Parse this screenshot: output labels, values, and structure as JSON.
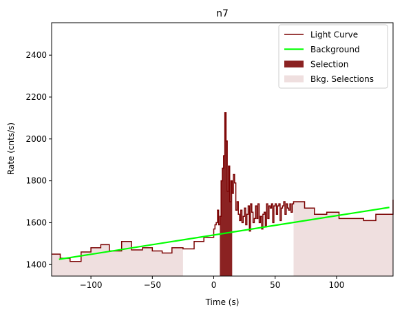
{
  "chart_data": {
    "type": "line",
    "title": "n7",
    "xlabel": "Time (s)",
    "ylabel": "Rate (cnts/s)",
    "xlim": [
      -132,
      146
    ],
    "ylim": [
      1345,
      2555
    ],
    "xticks": [
      -100,
      -50,
      0,
      50,
      100
    ],
    "yticks": [
      1400,
      1600,
      1800,
      2000,
      2200,
      2400
    ],
    "grid": false,
    "legend_placement": "top-right",
    "colors": {
      "light_curve": "#7a0000",
      "background": "#00ff00",
      "selection": "#8b2222",
      "bkg_selection": "#efdfdf"
    },
    "legend": [
      {
        "label": "Light Curve",
        "kind": "line",
        "color": "#7a0000"
      },
      {
        "label": "Background",
        "kind": "line",
        "color": "#00ff00"
      },
      {
        "label": "Selection",
        "kind": "patch",
        "color": "#8b2222"
      },
      {
        "label": "Bkg. Selections",
        "kind": "patch",
        "color": "#efdfdf"
      }
    ],
    "light_curve": {
      "edges": [
        -132,
        -125,
        -117,
        -108,
        -100,
        -92,
        -85,
        -75,
        -67,
        -58,
        -50,
        -42,
        -34,
        -25,
        -16,
        -8,
        0,
        1,
        2,
        3,
        4,
        5,
        6,
        7,
        8,
        9,
        10,
        11,
        12,
        13,
        14,
        15,
        16,
        17,
        18,
        19,
        20,
        21,
        22,
        23,
        24,
        25,
        26,
        27,
        28,
        29,
        30,
        31,
        32,
        33,
        34,
        35,
        36,
        37,
        38,
        39,
        40,
        41,
        42,
        43,
        44,
        45,
        46,
        47,
        48,
        49,
        50,
        51,
        52,
        53,
        54,
        55,
        56,
        57,
        58,
        59,
        60,
        61,
        62,
        63,
        64,
        65,
        74,
        82,
        92,
        102,
        112,
        122,
        132,
        146
      ],
      "rates": [
        1450,
        1430,
        1415,
        1460,
        1480,
        1495,
        1465,
        1510,
        1470,
        1480,
        1465,
        1455,
        1480,
        1475,
        1510,
        1530,
        1570,
        1590,
        1600,
        1660,
        1590,
        1630,
        1800,
        1860,
        1920,
        2125,
        1990,
        1750,
        1870,
        1700,
        1800,
        1740,
        1830,
        1790,
        1660,
        1700,
        1640,
        1610,
        1660,
        1600,
        1630,
        1670,
        1590,
        1640,
        1680,
        1560,
        1690,
        1650,
        1600,
        1620,
        1680,
        1620,
        1690,
        1600,
        1630,
        1570,
        1640,
        1650,
        1580,
        1690,
        1620,
        1680,
        1670,
        1690,
        1600,
        1680,
        1690,
        1640,
        1680,
        1690,
        1610,
        1670,
        1680,
        1700,
        1640,
        1690,
        1670,
        1660,
        1690,
        1650,
        1690,
        1700,
        1670,
        1640,
        1650,
        1620,
        1620,
        1610,
        1640,
        1710
      ]
    },
    "background_fit": {
      "x": [
        -126,
        143
      ],
      "y": [
        1425,
        1673
      ]
    },
    "selection": {
      "x": [
        -132,
        146
      ],
      "range": [
        5,
        15
      ]
    },
    "bkg_selections": [
      {
        "range": [
          -132,
          -25
        ]
      },
      {
        "range": [
          65,
          146
        ]
      }
    ]
  }
}
